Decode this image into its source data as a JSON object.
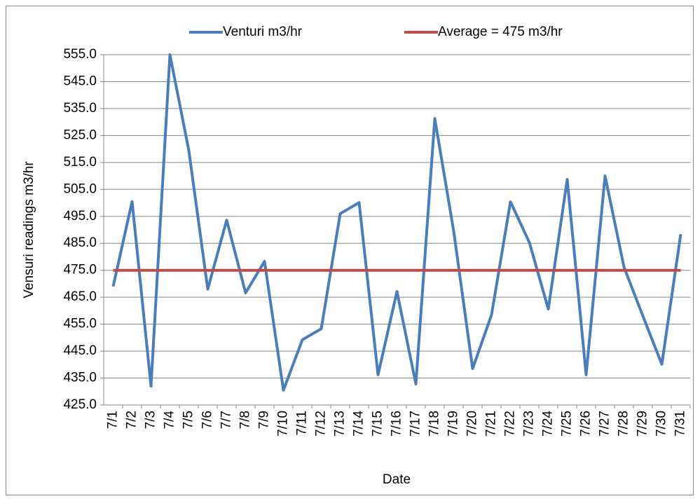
{
  "chart_data": {
    "type": "line",
    "x_label": "Date",
    "y_label": "Vensuri readings m3/hr",
    "categories": [
      "7/1",
      "7/2",
      "7/3",
      "7/4",
      "7/5",
      "7/6",
      "7/7",
      "7/8",
      "7/9",
      "7/10",
      "7/11",
      "7/12",
      "7/13",
      "7/14",
      "7/15",
      "7/16",
      "7/17",
      "7/18",
      "7/19",
      "7/20",
      "7/21",
      "7/22",
      "7/23",
      "7/24",
      "7/25",
      "7/26",
      "7/27",
      "7/28",
      "7/29",
      "7/30",
      "7/31"
    ],
    "series": [
      {
        "name": "Venturi m3/hr",
        "color": "#4a7ebb",
        "values": [
          469,
          500.5,
          432,
          555,
          519.4,
          468,
          493.6,
          466.6,
          478.3,
          430.5,
          449.2,
          453.3,
          496,
          500.1,
          436.2,
          467.1,
          432.8,
          531.3,
          489.5,
          438.5,
          458.5,
          500.4,
          485.3,
          460.6,
          508.7,
          436.2,
          510,
          476.2,
          458,
          440.1,
          488.4
        ]
      },
      {
        "name": "Average = 475 m3/hr",
        "color": "#be4b48",
        "values": [
          475,
          475,
          475,
          475,
          475,
          475,
          475,
          475,
          475,
          475,
          475,
          475,
          475,
          475,
          475,
          475,
          475,
          475,
          475,
          475,
          475,
          475,
          475,
          475,
          475,
          475,
          475,
          475,
          475,
          475,
          475
        ]
      }
    ],
    "ylim": [
      425,
      555
    ],
    "yticks": [
      {
        "value": 425,
        "label": "425.0"
      },
      {
        "value": 435,
        "label": "435.0"
      },
      {
        "value": 445,
        "label": "445.0"
      },
      {
        "value": 455,
        "label": "455.0"
      },
      {
        "value": 465,
        "label": "465.0"
      },
      {
        "value": 475,
        "label": "475.0"
      },
      {
        "value": 485,
        "label": "485.0"
      },
      {
        "value": 495,
        "label": "495.0"
      },
      {
        "value": 505,
        "label": "505.0"
      },
      {
        "value": 515,
        "label": "515.0"
      },
      {
        "value": 525,
        "label": "525.0"
      },
      {
        "value": 535,
        "label": "535.0"
      },
      {
        "value": 545,
        "label": "545.0"
      },
      {
        "value": 555,
        "label": "555.0"
      }
    ],
    "grid": true,
    "legend": "top"
  }
}
